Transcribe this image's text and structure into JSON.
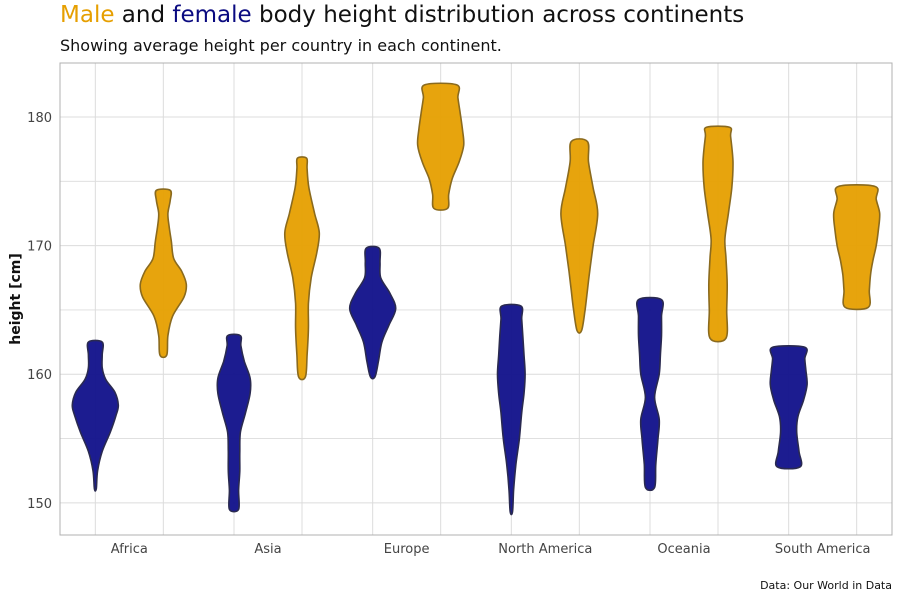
{
  "title": {
    "male_word": "Male",
    "and_word": " and ",
    "female_word": "female",
    "rest": " body height distribution across continents"
  },
  "subtitle": "Showing average height per country in each continent.",
  "caption": "Data: Our World in Data",
  "colors": {
    "male": "#e69f00",
    "female": "#10108a",
    "grid": "#dcdcdc",
    "panel_border": "#b0b0b0"
  },
  "chart_data": {
    "type": "violin",
    "ylabel": "height [cm]",
    "ylim": [
      147.5,
      184.2
    ],
    "yticks": [
      150,
      160,
      170,
      180
    ],
    "grid": true,
    "categories": [
      "Africa",
      "Asia",
      "Europe",
      "North America",
      "Oceania",
      "South America"
    ],
    "series": [
      {
        "name": "female",
        "violins": [
          {
            "min": 151.1,
            "max": 162.5,
            "profile": [
              [
                151.1,
                0.04
              ],
              [
                152.5,
                0.1
              ],
              [
                154,
                0.3
              ],
              [
                155.5,
                0.65
              ],
              [
                156.8,
                0.9
              ],
              [
                157.6,
                1.0
              ],
              [
                158.6,
                0.85
              ],
              [
                159.6,
                0.45
              ],
              [
                160.5,
                0.3
              ],
              [
                161.5,
                0.3
              ],
              [
                162.5,
                0.3
              ]
            ]
          },
          {
            "min": 149.5,
            "max": 163.0,
            "profile": [
              [
                149.5,
                0.2
              ],
              [
                151,
                0.2
              ],
              [
                152.5,
                0.25
              ],
              [
                154,
                0.25
              ],
              [
                155.5,
                0.28
              ],
              [
                157,
                0.5
              ],
              [
                158.5,
                0.7
              ],
              [
                159.7,
                0.7
              ],
              [
                161,
                0.45
              ],
              [
                162.2,
                0.3
              ],
              [
                163,
                0.28
              ]
            ]
          },
          {
            "min": 159.8,
            "max": 169.8,
            "profile": [
              [
                159.8,
                0.1
              ],
              [
                161,
                0.25
              ],
              [
                162.5,
                0.4
              ],
              [
                163.8,
                0.7
              ],
              [
                165.1,
                1.0
              ],
              [
                166.3,
                0.75
              ],
              [
                167.5,
                0.35
              ],
              [
                168.7,
                0.32
              ],
              [
                169.8,
                0.28
              ]
            ]
          },
          {
            "min": 149.3,
            "max": 165.3,
            "profile": [
              [
                149.3,
                0.05
              ],
              [
                151,
                0.1
              ],
              [
                153,
                0.2
              ],
              [
                155,
                0.35
              ],
              [
                157,
                0.45
              ],
              [
                158.5,
                0.55
              ],
              [
                160,
                0.6
              ],
              [
                161.5,
                0.55
              ],
              [
                163,
                0.5
              ],
              [
                164.3,
                0.45
              ],
              [
                165.3,
                0.42
              ]
            ]
          },
          {
            "min": 151.2,
            "max": 165.8,
            "profile": [
              [
                151.2,
                0.2
              ],
              [
                153,
                0.25
              ],
              [
                155,
                0.35
              ],
              [
                156.5,
                0.4
              ],
              [
                158.2,
                0.2
              ],
              [
                160,
                0.4
              ],
              [
                161.5,
                0.45
              ],
              [
                163,
                0.5
              ],
              [
                164.5,
                0.5
              ],
              [
                165.8,
                0.5
              ]
            ]
          },
          {
            "min": 152.8,
            "max": 162.1,
            "profile": [
              [
                152.8,
                0.5
              ],
              [
                154,
                0.45
              ],
              [
                155.5,
                0.35
              ],
              [
                156.7,
                0.4
              ],
              [
                158,
                0.65
              ],
              [
                159.2,
                0.8
              ],
              [
                160.3,
                0.75
              ],
              [
                161.2,
                0.7
              ],
              [
                162.1,
                0.7
              ]
            ]
          }
        ]
      },
      {
        "name": "male",
        "violins": [
          {
            "min": 161.5,
            "max": 174.3,
            "profile": [
              [
                161.5,
                0.15
              ],
              [
                163,
                0.2
              ],
              [
                164.5,
                0.4
              ],
              [
                166,
                0.9
              ],
              [
                167,
                1.0
              ],
              [
                168,
                0.8
              ],
              [
                169,
                0.45
              ],
              [
                170.3,
                0.35
              ],
              [
                171.5,
                0.25
              ],
              [
                172.5,
                0.2
              ],
              [
                173.5,
                0.3
              ],
              [
                174.3,
                0.3
              ]
            ]
          },
          {
            "min": 159.8,
            "max": 176.8,
            "profile": [
              [
                159.8,
                0.15
              ],
              [
                161.5,
                0.22
              ],
              [
                163.5,
                0.28
              ],
              [
                165.5,
                0.28
              ],
              [
                167.5,
                0.4
              ],
              [
                169.5,
                0.65
              ],
              [
                171,
                0.75
              ],
              [
                172.5,
                0.55
              ],
              [
                174.5,
                0.3
              ],
              [
                176,
                0.22
              ],
              [
                176.8,
                0.2
              ]
            ]
          },
          {
            "min": 172.9,
            "max": 182.5,
            "profile": [
              [
                172.9,
                0.3
              ],
              [
                174,
                0.35
              ],
              [
                175.2,
                0.5
              ],
              [
                176.5,
                0.8
              ],
              [
                177.8,
                1.0
              ],
              [
                179,
                0.95
              ],
              [
                180.3,
                0.85
              ],
              [
                181.5,
                0.75
              ],
              [
                182.5,
                0.7
              ]
            ]
          },
          {
            "min": 163.4,
            "max": 178.1,
            "profile": [
              [
                163.4,
                0.1
              ],
              [
                165,
                0.25
              ],
              [
                166.5,
                0.35
              ],
              [
                168,
                0.45
              ],
              [
                170,
                0.6
              ],
              [
                172.5,
                0.8
              ],
              [
                174.5,
                0.6
              ],
              [
                176.5,
                0.4
              ],
              [
                178.1,
                0.35
              ]
            ]
          },
          {
            "min": 162.8,
            "max": 179.2,
            "profile": [
              [
                162.8,
                0.35
              ],
              [
                165,
                0.38
              ],
              [
                167,
                0.4
              ],
              [
                169,
                0.35
              ],
              [
                170.5,
                0.3
              ],
              [
                172.5,
                0.45
              ],
              [
                174.5,
                0.6
              ],
              [
                176.5,
                0.65
              ],
              [
                178.5,
                0.55
              ],
              [
                179.2,
                0.5
              ]
            ]
          },
          {
            "min": 165.2,
            "max": 174.6,
            "profile": [
              [
                165.2,
                0.5
              ],
              [
                166.5,
                0.55
              ],
              [
                167.7,
                0.6
              ],
              [
                168.8,
                0.7
              ],
              [
                170,
                0.85
              ],
              [
                171.3,
                0.95
              ],
              [
                172.5,
                1.0
              ],
              [
                173.6,
                0.85
              ],
              [
                174.6,
                0.8
              ]
            ]
          }
        ]
      }
    ]
  }
}
